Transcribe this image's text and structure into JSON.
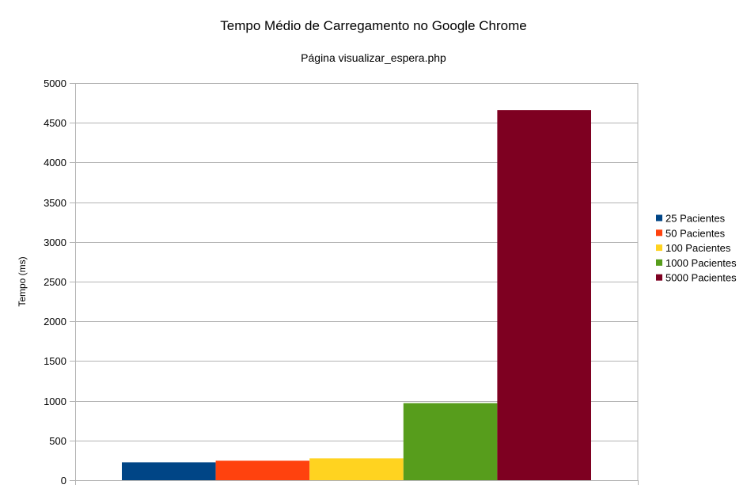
{
  "chart_data": {
    "type": "bar",
    "title": "Tempo Médio de Carregamento no Google Chrome",
    "subtitle": "Página visualizar_espera.php",
    "xlabel": "",
    "ylabel": "Tempo (ms)",
    "ylim": [
      0,
      5000
    ],
    "yticks": [
      0,
      500,
      1000,
      1500,
      2000,
      2500,
      3000,
      3500,
      4000,
      4500,
      5000
    ],
    "grid": true,
    "legend_position": "right",
    "categories": [
      ""
    ],
    "series": [
      {
        "name": "25 Pacientes",
        "values": [
          225
        ],
        "color": "#004586"
      },
      {
        "name": "50 Pacientes",
        "values": [
          245
        ],
        "color": "#ff420e"
      },
      {
        "name": "100 Pacientes",
        "values": [
          275
        ],
        "color": "#ffd320"
      },
      {
        "name": "1000 Pacientes",
        "values": [
          970
        ],
        "color": "#579d1c"
      },
      {
        "name": "5000 Pacientes",
        "values": [
          4660
        ],
        "color": "#7e0021"
      }
    ]
  }
}
